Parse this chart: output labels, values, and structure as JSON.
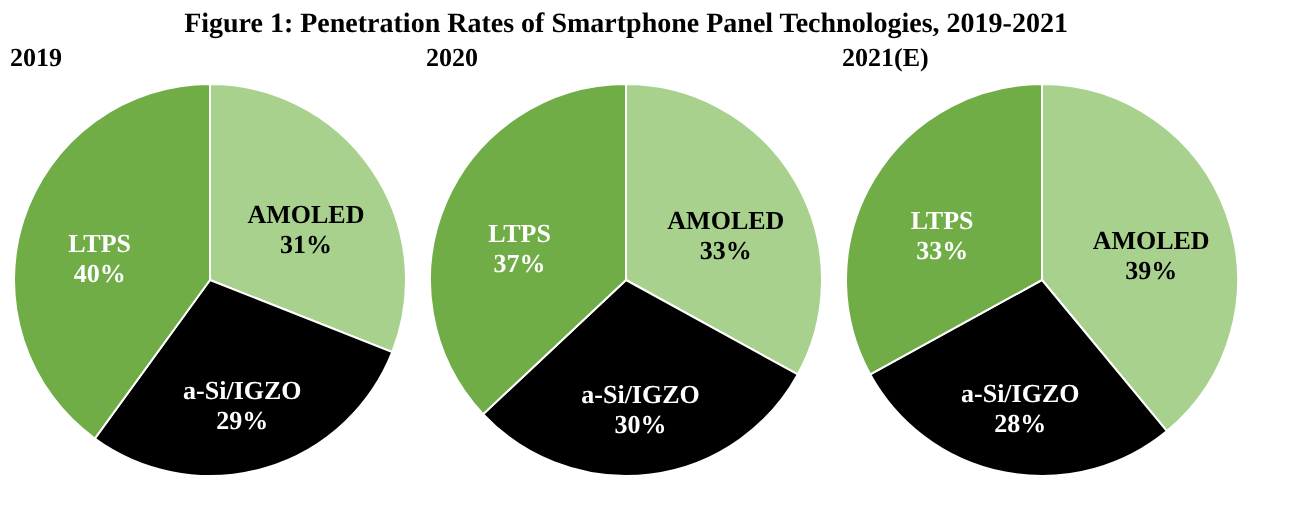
{
  "chart_data": [
    {
      "type": "pie",
      "title": "Figure 1: Penetration Rates of Smartphone Panel Technologies, 2019-2021",
      "subtitle": "2019",
      "categories": [
        "AMOLED",
        "a-Si/IGZO",
        "LTPS"
      ],
      "values": [
        31,
        29,
        40
      ],
      "value_labels": [
        "31%",
        "29%",
        "40%"
      ],
      "colors": [
        "#a9d18e",
        "#000000",
        "#70ad47"
      ]
    },
    {
      "type": "pie",
      "subtitle": "2020",
      "categories": [
        "AMOLED",
        "a-Si/IGZO",
        "LTPS"
      ],
      "values": [
        33,
        30,
        37
      ],
      "value_labels": [
        "33%",
        "30%",
        "37%"
      ],
      "colors": [
        "#a9d18e",
        "#000000",
        "#70ad47"
      ]
    },
    {
      "type": "pie",
      "subtitle": "2021(E)",
      "categories": [
        "AMOLED",
        "a-Si/IGZO",
        "LTPS"
      ],
      "values": [
        39,
        28,
        33
      ],
      "value_labels": [
        "39%",
        "28%",
        "33%"
      ],
      "colors": [
        "#a9d18e",
        "#000000",
        "#70ad47"
      ]
    }
  ]
}
